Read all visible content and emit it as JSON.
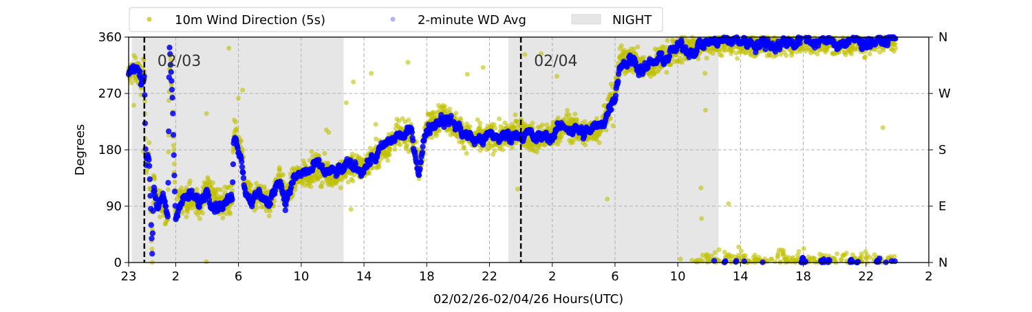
{
  "chart_data": {
    "type": "scatter",
    "xlabel": "02/02/26-02/04/26  Hours(UTC)",
    "ylabel": "Degrees",
    "x_units": "hours since 02/02 00:00 UTC",
    "xlim": [
      23,
      74
    ],
    "ylim": [
      0,
      360
    ],
    "x_ticks": [
      23,
      26,
      30,
      34,
      38,
      42,
      46,
      50,
      54,
      58,
      62,
      66,
      70,
      74
    ],
    "x_tick_labels": [
      "23",
      "2",
      "6",
      "10",
      "14",
      "18",
      "22",
      "2",
      "6",
      "10",
      "14",
      "18",
      "22",
      "2"
    ],
    "y_ticks": [
      0,
      90,
      180,
      270,
      360
    ],
    "y_tick_labels": [
      "0",
      "90",
      "180",
      "270",
      "360"
    ],
    "right_tick_labels": [
      "N",
      "E",
      "S",
      "W",
      "N"
    ],
    "grid": true,
    "legend": {
      "placement": "top-left-outside",
      "entries": [
        "10m Wind Direction (5s)",
        "2-minute WD Avg",
        "NIGHT"
      ]
    },
    "night_spans": [
      [
        23.2,
        36.7
      ],
      [
        47.2,
        60.6
      ]
    ],
    "day_markers": [
      {
        "x": 24,
        "label": "02/03"
      },
      {
        "x": 48,
        "label": "02/04"
      }
    ],
    "colors": {
      "wd_5s": "#bfbf00",
      "wd_avg": "#0000ff",
      "night": "#e6e6e6"
    },
    "series": [
      {
        "name": "2-minute WD Avg",
        "x": [
          23.0,
          23.5,
          23.8,
          24.0,
          24.1,
          24.3,
          24.5,
          24.6,
          24.8,
          25.2,
          25.5,
          25.6,
          25.8,
          25.9,
          26.0,
          26.2,
          27.0,
          27.5,
          28.0,
          28.5,
          29.0,
          29.6,
          29.7,
          30.2,
          30.4,
          31.0,
          31.5,
          32.0,
          32.6,
          33.0,
          33.5,
          34.0,
          35.0,
          36.0,
          37.0,
          38.0,
          39.0,
          40.0,
          41.0,
          41.5,
          42.0,
          43.0,
          44.0,
          45.0,
          46.0,
          47.0,
          48.0,
          49.0,
          50.0,
          51.0,
          52.0,
          53.0,
          53.5,
          54.0,
          54.3,
          55.0,
          56.0,
          57.0,
          58.0,
          59.0,
          60.0,
          62.0,
          64.0,
          66.0,
          68.0,
          70.0,
          71.9
        ],
        "values": [
          300,
          310,
          290,
          305,
          165,
          170,
          20,
          130,
          95,
          95,
          70,
          340,
          260,
          150,
          70,
          100,
          105,
          90,
          120,
          100,
          95,
          100,
          210,
          175,
          120,
          100,
          110,
          90,
          140,
          100,
          130,
          140,
          150,
          140,
          150,
          155,
          175,
          200,
          205,
          150,
          215,
          235,
          215,
          195,
          200,
          200,
          210,
          195,
          205,
          220,
          205,
          215,
          240,
          270,
          320,
          325,
          310,
          325,
          340,
          345,
          352,
          355,
          350,
          356,
          352,
          354,
          355
        ]
      },
      {
        "name": "10m Wind Direction (5s)",
        "description_of_values": "follows the 2-minute average with about ±25° scatter, wrapping past 360 to 0",
        "spread_deg": 25
      }
    ]
  }
}
